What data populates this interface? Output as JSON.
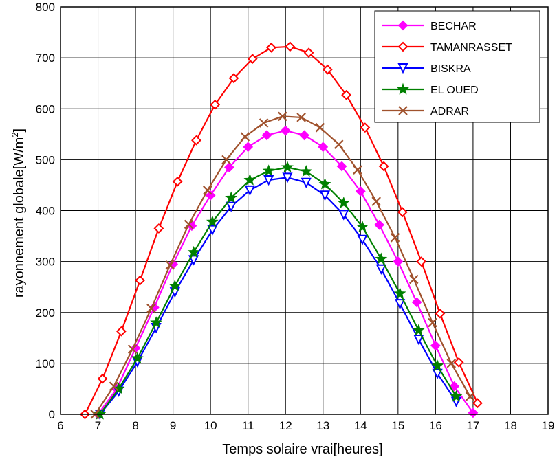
{
  "chart_data": {
    "type": "line",
    "xlabel": "Temps solaire vrai[heures]",
    "ylabel": "rayonnement globale[W/m",
    "ylabel_sup": "2",
    "ylabel_end": "]",
    "xlim": [
      6,
      19
    ],
    "ylim": [
      0,
      800
    ],
    "xticks": [
      6,
      7,
      8,
      9,
      10,
      11,
      12,
      13,
      14,
      15,
      16,
      17,
      18,
      19
    ],
    "yticks": [
      0,
      100,
      200,
      300,
      400,
      500,
      600,
      700,
      800
    ],
    "grid": true,
    "legend_position": "top-right",
    "series": [
      {
        "name": "BECHAR",
        "color": "#ff00ff",
        "marker": "diamond-filled",
        "x": [
          7.0,
          7.5,
          8.0,
          8.5,
          9.0,
          9.5,
          10.0,
          10.5,
          11.0,
          11.5,
          12.0,
          12.5,
          13.0,
          13.5,
          14.0,
          14.5,
          15.0,
          15.5,
          16.0,
          16.5,
          17.0
        ],
        "y": [
          0,
          50,
          130,
          210,
          295,
          370,
          430,
          485,
          525,
          548,
          557,
          548,
          525,
          487,
          438,
          372,
          300,
          220,
          135,
          55,
          3
        ]
      },
      {
        "name": "TAMANRASSET",
        "color": "#ff0000",
        "marker": "diamond-open",
        "x": [
          6.65,
          7.12,
          7.62,
          8.12,
          8.62,
          9.12,
          9.62,
          10.12,
          10.62,
          11.12,
          11.62,
          12.12,
          12.62,
          13.12,
          13.62,
          14.12,
          14.62,
          15.12,
          15.62,
          16.12,
          16.62,
          17.12
        ],
        "y": [
          0,
          70,
          163,
          263,
          365,
          457,
          538,
          608,
          660,
          698,
          720,
          722,
          710,
          677,
          627,
          563,
          487,
          397,
          300,
          198,
          102,
          22
        ]
      },
      {
        "name": "BISKRA",
        "color": "#0000ff",
        "marker": "triangle-down-open",
        "x": [
          7.05,
          7.55,
          8.05,
          8.55,
          9.05,
          9.55,
          10.05,
          10.55,
          11.05,
          11.55,
          12.05,
          12.55,
          13.05,
          13.55,
          14.05,
          14.55,
          15.05,
          15.55,
          16.05,
          16.55
        ],
        "y": [
          0,
          45,
          103,
          170,
          240,
          303,
          362,
          408,
          440,
          460,
          465,
          455,
          430,
          392,
          343,
          285,
          217,
          147,
          80,
          25
        ]
      },
      {
        "name": "EL OUED",
        "color": "#008000",
        "marker": "star",
        "x": [
          7.05,
          7.55,
          8.05,
          8.55,
          9.05,
          9.55,
          10.05,
          10.55,
          11.05,
          11.55,
          12.05,
          12.55,
          13.05,
          13.55,
          14.05,
          14.55,
          15.05,
          15.55,
          16.05,
          16.55
        ],
        "y": [
          0,
          50,
          110,
          180,
          252,
          318,
          378,
          425,
          460,
          478,
          485,
          477,
          452,
          415,
          368,
          305,
          237,
          165,
          95,
          35
        ]
      },
      {
        "name": "ADRAR",
        "color": "#a0522d",
        "marker": "x",
        "x": [
          6.92,
          7.42,
          7.92,
          8.42,
          8.92,
          9.42,
          9.92,
          10.42,
          10.92,
          11.42,
          11.92,
          12.42,
          12.92,
          13.42,
          13.92,
          14.42,
          14.92,
          15.42,
          15.92,
          16.42,
          16.92
        ],
        "y": [
          0,
          55,
          128,
          208,
          293,
          373,
          440,
          500,
          545,
          572,
          585,
          583,
          563,
          530,
          480,
          418,
          347,
          265,
          180,
          100,
          35
        ]
      }
    ]
  }
}
